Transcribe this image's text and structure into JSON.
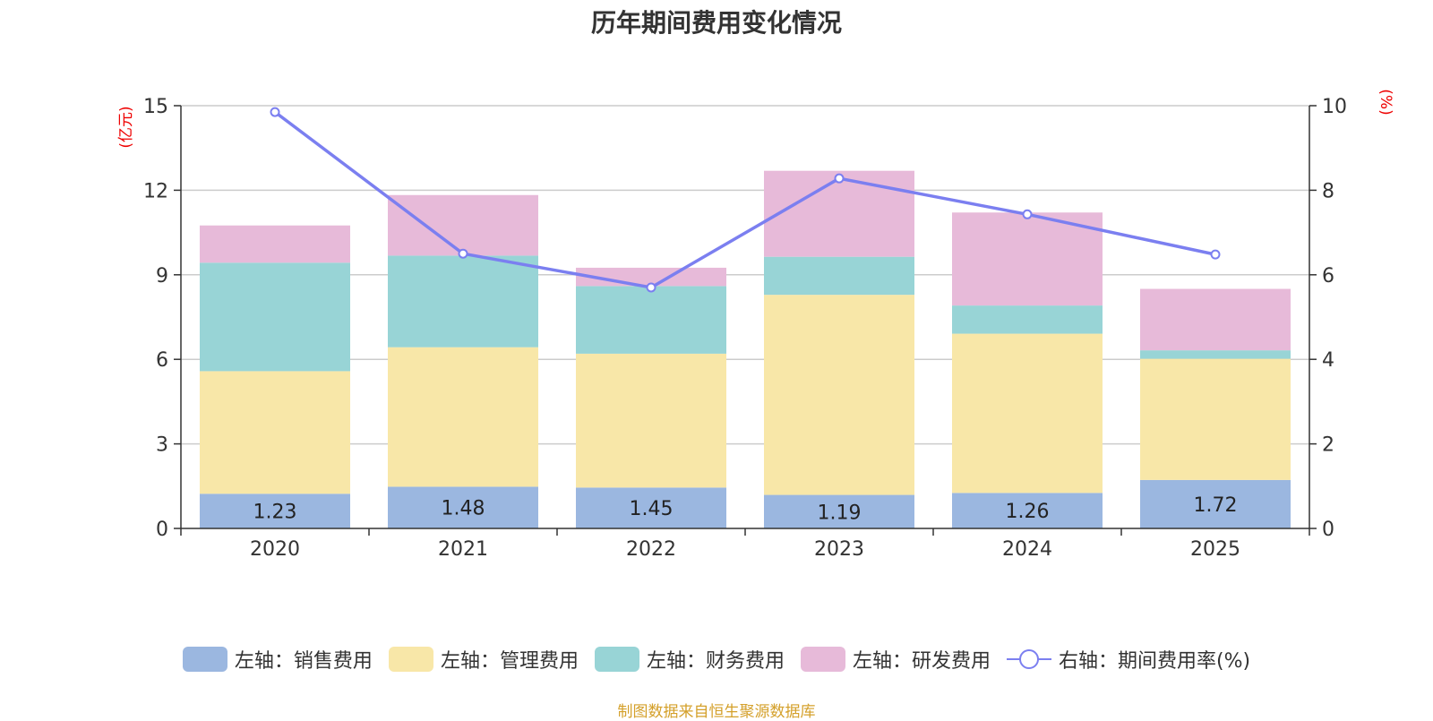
{
  "chart_data": {
    "type": "bar",
    "title": "历年期间费用变化情况",
    "categories": [
      "2020",
      "2021",
      "2022",
      "2023",
      "2024",
      "2025"
    ],
    "left_axis": {
      "unit": "(亿元)",
      "range": [
        0,
        15
      ],
      "ticks": [
        "0",
        "3",
        "6",
        "9",
        "12",
        "15"
      ]
    },
    "right_axis": {
      "unit": "(%)",
      "range": [
        0,
        10
      ],
      "ticks": [
        "0",
        "2",
        "4",
        "6",
        "8",
        "10"
      ]
    },
    "series": [
      {
        "name": "左轴：销售费用",
        "stack": "left",
        "color": "#9bb7e0",
        "values": [
          1.23,
          1.48,
          1.45,
          1.19,
          1.26,
          1.72
        ]
      },
      {
        "name": "左轴：管理费用",
        "stack": "left",
        "color": "#f8e7a8",
        "values": [
          4.35,
          4.95,
          4.75,
          7.1,
          5.65,
          4.3
        ]
      },
      {
        "name": "左轴：财务费用",
        "stack": "left",
        "color": "#98d4d6",
        "values": [
          3.85,
          3.25,
          2.4,
          1.35,
          1.0,
          0.3
        ]
      },
      {
        "name": "左轴：研发费用",
        "stack": "left",
        "color": "#e7bad9",
        "values": [
          1.32,
          2.15,
          0.65,
          3.05,
          3.3,
          2.18
        ]
      },
      {
        "name": "右轴：期间费用率(%)",
        "type": "line",
        "axis": "right",
        "color": "#7b7ff0",
        "values": [
          9.85,
          6.5,
          5.7,
          8.28,
          7.43,
          6.48
        ]
      }
    ],
    "data_labels": [
      "1.23",
      "1.48",
      "1.45",
      "1.19",
      "1.26",
      "1.72"
    ],
    "grid": true,
    "legend_position": "bottom"
  },
  "source_note": "制图数据来自恒生聚源数据库"
}
